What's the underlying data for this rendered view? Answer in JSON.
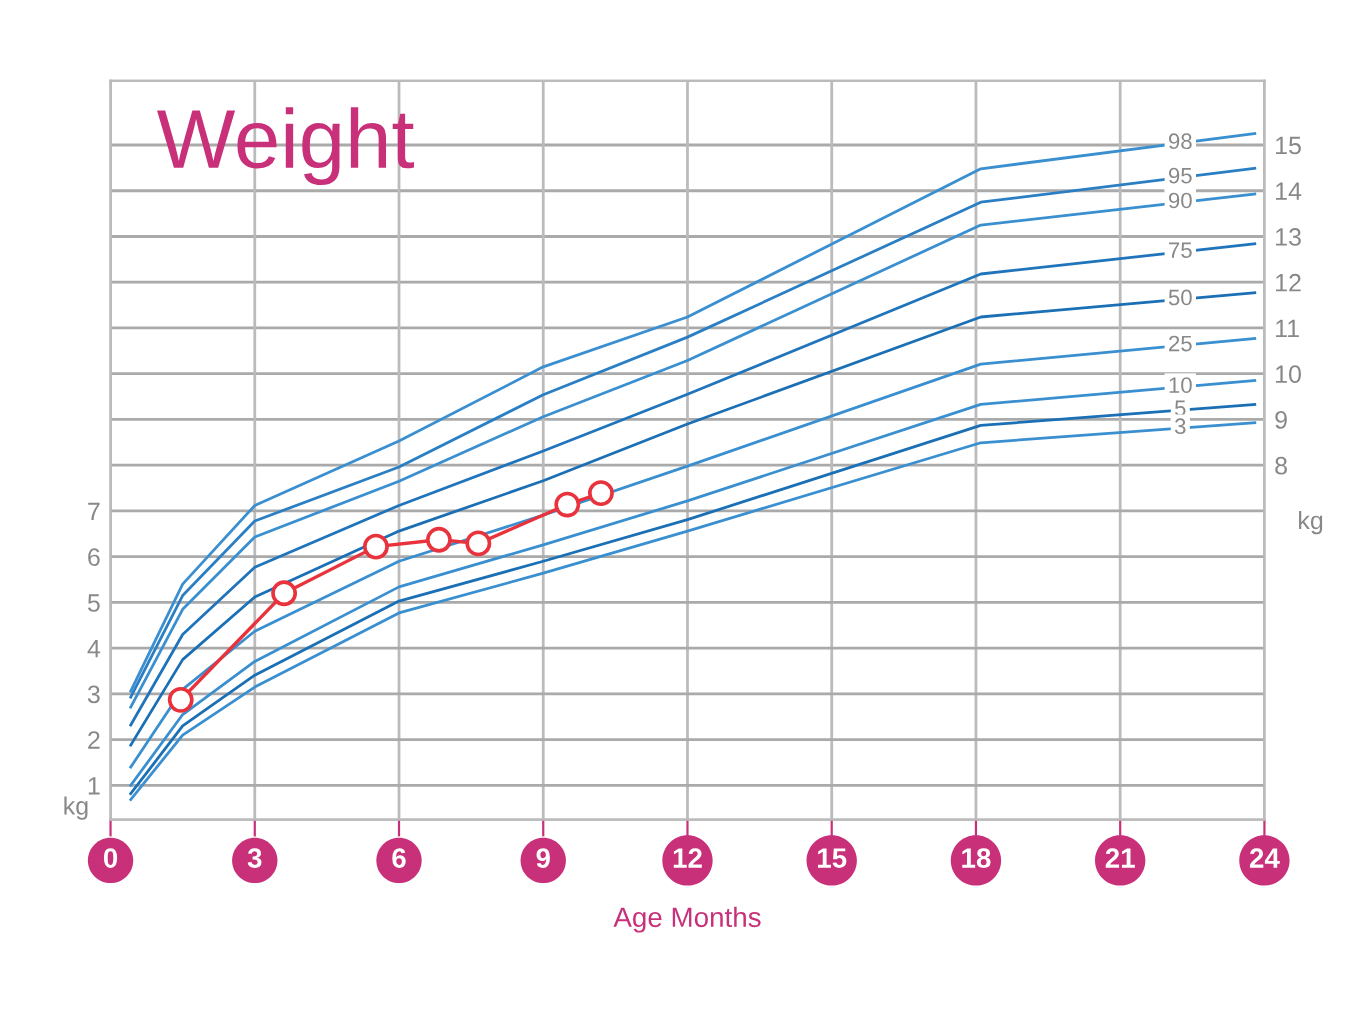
{
  "chart_data": {
    "type": "line",
    "title": "Weight",
    "xlabel": "Age Months",
    "ylabel": "kg",
    "y2label": "kg",
    "xlim": [
      0,
      24
    ],
    "xticks": [
      0,
      3,
      6,
      9,
      12,
      15,
      18,
      21,
      24
    ],
    "ylim": [
      0.25,
      16.4
    ],
    "yticks": [
      1,
      2,
      3,
      4,
      5,
      6,
      7
    ],
    "y2lim": [
      0.25,
      16.4
    ],
    "y2ticks": [
      8,
      9,
      10,
      11,
      12,
      13,
      14,
      15
    ],
    "grid": true,
    "x": [
      0.42,
      1.5,
      3,
      6,
      9,
      12,
      18.1,
      23.8
    ],
    "series": [
      {
        "name": "98",
        "color": "#3a8fd0",
        "marker": "none",
        "values": [
          3.06,
          5.4,
          7.12,
          8.53,
          10.15,
          11.24,
          14.48,
          15.25
        ]
      },
      {
        "name": "95",
        "color": "#2a7fc4",
        "marker": "none",
        "values": [
          2.93,
          5.15,
          6.78,
          7.96,
          9.54,
          10.8,
          13.75,
          14.49
        ]
      },
      {
        "name": "90",
        "color": "#3a8fd0",
        "marker": "none",
        "values": [
          2.71,
          4.85,
          6.43,
          7.65,
          9.06,
          10.29,
          13.25,
          13.93
        ]
      },
      {
        "name": "75",
        "color": "#1f74bb",
        "marker": "none",
        "values": [
          2.32,
          4.3,
          5.77,
          7.12,
          8.31,
          9.55,
          12.18,
          12.84
        ]
      },
      {
        "name": "50",
        "color": "#1a6fb5",
        "marker": "none",
        "values": [
          1.88,
          3.75,
          5.12,
          6.56,
          7.66,
          8.9,
          11.24,
          11.77
        ]
      },
      {
        "name": "25",
        "color": "#3a8fd0",
        "marker": "none",
        "values": [
          1.4,
          3.1,
          4.37,
          5.9,
          6.91,
          7.98,
          10.21,
          10.77
        ]
      },
      {
        "name": "10",
        "color": "#3a8fd0",
        "marker": "none",
        "values": [
          1.0,
          2.55,
          3.71,
          5.34,
          6.26,
          7.22,
          9.33,
          9.85
        ]
      },
      {
        "name": "5",
        "color": "#1a6fb5",
        "marker": "none",
        "values": [
          0.82,
          2.3,
          3.41,
          5.03,
          5.9,
          6.81,
          8.87,
          9.33
        ]
      },
      {
        "name": "3",
        "color": "#3a8fd0",
        "marker": "none",
        "values": [
          0.69,
          2.1,
          3.15,
          4.77,
          5.64,
          6.56,
          8.49,
          8.93
        ]
      },
      {
        "color": "#e8323c",
        "marker": "circle",
        "x": [
          1.46,
          3.61,
          5.52,
          6.83,
          7.65,
          9.5,
          10.2
        ],
        "values": [
          2.87,
          5.2,
          6.22,
          6.37,
          6.29,
          7.14,
          7.39
        ]
      }
    ]
  }
}
